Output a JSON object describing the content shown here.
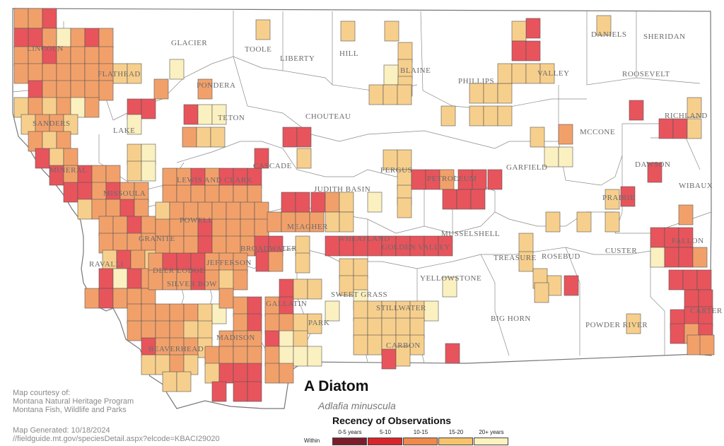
{
  "map": {
    "title": "A Diatom",
    "scientific_name": "Adlafia minuscula",
    "courtesy_lines": [
      "Map courtesy of:",
      "Montana Natural Heritage Program",
      "Montana Fish, Wildlife and Parks"
    ],
    "generated_label": "Map Generated: 10/18/2024",
    "url_text": "//fieldguide.mt.gov/speciesDetail.aspx?elcode=KBACI29020",
    "counties": [
      "LINCOLN",
      "FLATHEAD",
      "GLACIER",
      "TOOLE",
      "LIBERTY",
      "HILL",
      "BLAINE",
      "PHILLIPS",
      "VALLEY",
      "DANIELS",
      "SHERIDAN",
      "ROOSEVELT",
      "PONDERA",
      "TETON",
      "CHOUTEAU",
      "SANDERS",
      "LAKE",
      "RICHLAND",
      "MCCONE",
      "GARFIELD",
      "DAWSON",
      "WIBAUX",
      "CASCADE",
      "MINERAL",
      "FERGUS",
      "PETROLEUM",
      "MISSOULA",
      "LEWIS AND CLARK",
      "JUDITH BASIN",
      "PRAIRIE",
      "POWELL",
      "MEAGHER",
      "WHEATLAND",
      "GOLDEN VALLEY",
      "MUSSELSHELL",
      "FALLON",
      "GRANITE",
      "BROADWATER",
      "ROSEBUD",
      "TREASURE",
      "CUSTER",
      "RAVALLI",
      "DEER LODGE",
      "JEFFERSON",
      "SILVER BOW",
      "YELLOWSTONE",
      "SWEET GRASS",
      "GALLATIN",
      "STILLWATER",
      "CARTER",
      "BIG HORN",
      "POWDER RIVER",
      "PARK",
      "MADISON",
      "CARBON",
      "BEAVERHEAD"
    ],
    "legend": {
      "title": "Recency of Observations",
      "within_label": "Within",
      "items": [
        {
          "label": "0-5 years",
          "color": "#7b1e2b"
        },
        {
          "label": "5-10",
          "color": "#d9262d"
        },
        {
          "label": "10-15",
          "color": "#f08a4b"
        },
        {
          "label": "15-20",
          "color": "#f6c36b"
        },
        {
          "label": "20+ years",
          "color": "#fdf1bf"
        }
      ]
    },
    "cell_colors": {
      "b": "#e8545c",
      "c": "#f2a06a",
      "d": "#f7cf8c",
      "e": "#fbf0c0"
    }
  }
}
